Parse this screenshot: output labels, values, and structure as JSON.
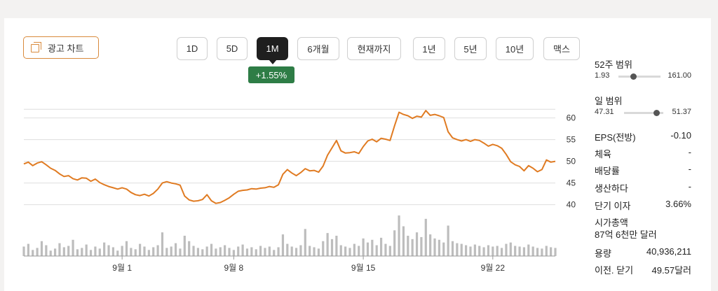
{
  "toolbar": {
    "ad_chart_label": "광고 차트",
    "ranges": [
      "1D",
      "5D",
      "1M",
      "6개월",
      "현재까지",
      "1년",
      "5년",
      "10년",
      "맥스"
    ],
    "active_range": "1M",
    "change": "+1.55%"
  },
  "chart_data": {
    "type": "line",
    "title": "",
    "xlabel": "",
    "ylabel": "",
    "ylim": [
      38,
      63
    ],
    "y_ticks": [
      40,
      45,
      50,
      55,
      60
    ],
    "x_tick_labels": [
      "9월 1",
      "9월 8",
      "9월 15",
      "9월 22"
    ],
    "grid": true,
    "line_color": "#e07b22",
    "volume_color": "#bdbdbd",
    "series": [
      {
        "values": [
          49.4,
          49.8,
          49.0,
          49.6,
          49.9,
          49.2,
          48.4,
          47.9,
          47.1,
          46.5,
          46.7,
          46.0,
          45.7,
          46.2,
          46.1,
          45.4,
          45.9,
          45.1,
          44.6,
          44.2,
          43.9,
          43.6,
          43.9,
          43.6,
          42.8,
          42.3,
          42.1,
          42.4,
          42.0,
          42.6,
          43.6,
          45.0,
          45.3,
          45.0,
          44.8,
          44.5,
          42.0,
          41.1,
          40.8,
          40.9,
          41.2,
          42.3,
          40.9,
          40.3,
          40.5,
          41.0,
          41.6,
          42.4,
          43.1,
          43.3,
          43.4,
          43.7,
          43.6,
          43.8,
          43.9,
          44.2,
          44.0,
          44.6,
          47.0,
          48.1,
          47.3,
          46.7,
          47.4,
          48.3,
          47.8,
          47.9,
          47.5,
          48.9,
          51.4,
          53.1,
          54.8,
          52.4,
          51.9,
          52.0,
          52.2,
          51.8,
          53.4,
          54.7,
          55.1,
          54.5,
          55.3,
          55.1,
          54.8,
          58.2,
          61.3,
          60.8,
          60.5,
          59.9,
          60.4,
          60.2,
          61.7,
          60.6,
          60.8,
          60.5,
          60.1,
          56.8,
          55.4,
          55.0,
          54.7,
          55.0,
          54.6,
          55.0,
          54.8,
          54.2,
          53.5,
          53.9,
          53.6,
          53.0,
          51.6,
          49.9,
          49.2,
          48.8,
          47.8,
          49.0,
          48.4,
          47.6,
          48.1,
          50.3,
          49.8,
          50.0
        ]
      }
    ],
    "volume": [
      14,
      18,
      9,
      12,
      22,
      16,
      8,
      11,
      19,
      13,
      15,
      24,
      10,
      12,
      17,
      9,
      14,
      11,
      20,
      16,
      13,
      8,
      15,
      22,
      12,
      10,
      18,
      14,
      9,
      13,
      16,
      35,
      12,
      14,
      19,
      11,
      30,
      22,
      15,
      12,
      10,
      14,
      18,
      11,
      13,
      16,
      12,
      9,
      14,
      17,
      11,
      13,
      10,
      15,
      12,
      14,
      9,
      13,
      32,
      18,
      14,
      12,
      16,
      40,
      15,
      13,
      11,
      22,
      34,
      25,
      30,
      16,
      14,
      12,
      18,
      15,
      26,
      20,
      24,
      16,
      27,
      18,
      15,
      38,
      60,
      44,
      30,
      25,
      35,
      28,
      55,
      32,
      26,
      24,
      20,
      45,
      22,
      19,
      18,
      16,
      14,
      17,
      15,
      13,
      16,
      14,
      15,
      12,
      18,
      20,
      15,
      14,
      13,
      17,
      14,
      12,
      11,
      15,
      13,
      12
    ]
  },
  "stats": {
    "week52_range": {
      "label": "52주 범위",
      "min": "1.93",
      "max": "161.00",
      "position": 0.35
    },
    "day_range": {
      "label": "일 범위",
      "min": "47.31",
      "max": "51.37",
      "position": 0.83
    },
    "eps": {
      "label": "EPS(전방)",
      "value": "-0.10"
    },
    "sector": {
      "label": "체육",
      "value": "-"
    },
    "dividend": {
      "label": "배당률",
      "value": "-"
    },
    "produce": {
      "label": "생산하다",
      "value": "-"
    },
    "short_interest": {
      "label": "단기 이자",
      "value": "3.66%"
    },
    "market_cap": {
      "label": "시가총액",
      "value": "87억 6천만 달러"
    },
    "volume": {
      "label": "용량",
      "value": "40,936,211"
    },
    "prev_close": {
      "label": "이전. 닫기",
      "value": "49.57달러"
    }
  }
}
